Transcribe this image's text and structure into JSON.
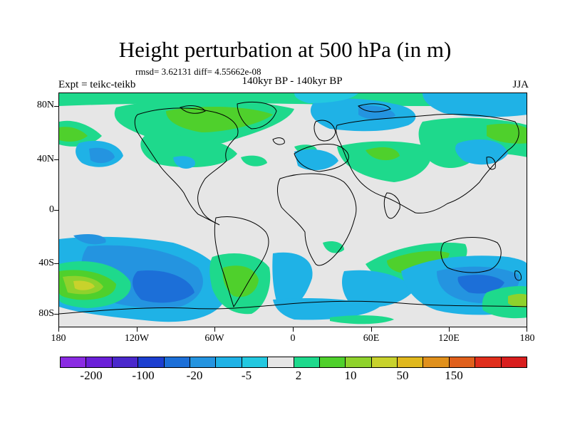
{
  "title": "Height perturbation at 500 hPa (in m)",
  "stats": "rmsd= 3.62131 diff= 4.55662e-08",
  "experiment": "Expt = teikc-teikb",
  "period": "140kyr BP - 140kyr BP",
  "season": "JJA",
  "map": {
    "background": "#e6e6e6",
    "coastline_color": "#000000",
    "lat_labels": [
      "80N",
      "40N",
      "0",
      "40S",
      "80S"
    ],
    "lon_labels": [
      "180",
      "120W",
      "60W",
      "0",
      "60E",
      "120E",
      "180"
    ]
  },
  "colorbar": {
    "colors": [
      "#8a2be2",
      "#6a1fd8",
      "#4a28cc",
      "#1c3fd0",
      "#1c6fd8",
      "#2494e0",
      "#1fb2e6",
      "#23c8e0",
      "#e6e6e6",
      "#1ed98c",
      "#4fd02c",
      "#8fd22c",
      "#c8d22c",
      "#e0b81e",
      "#e0901c",
      "#e0601c",
      "#e02e1c",
      "#d81e1e"
    ],
    "labels": [
      "-200",
      "-100",
      "-20",
      "-5",
      "2",
      "10",
      "50",
      "150"
    ]
  }
}
